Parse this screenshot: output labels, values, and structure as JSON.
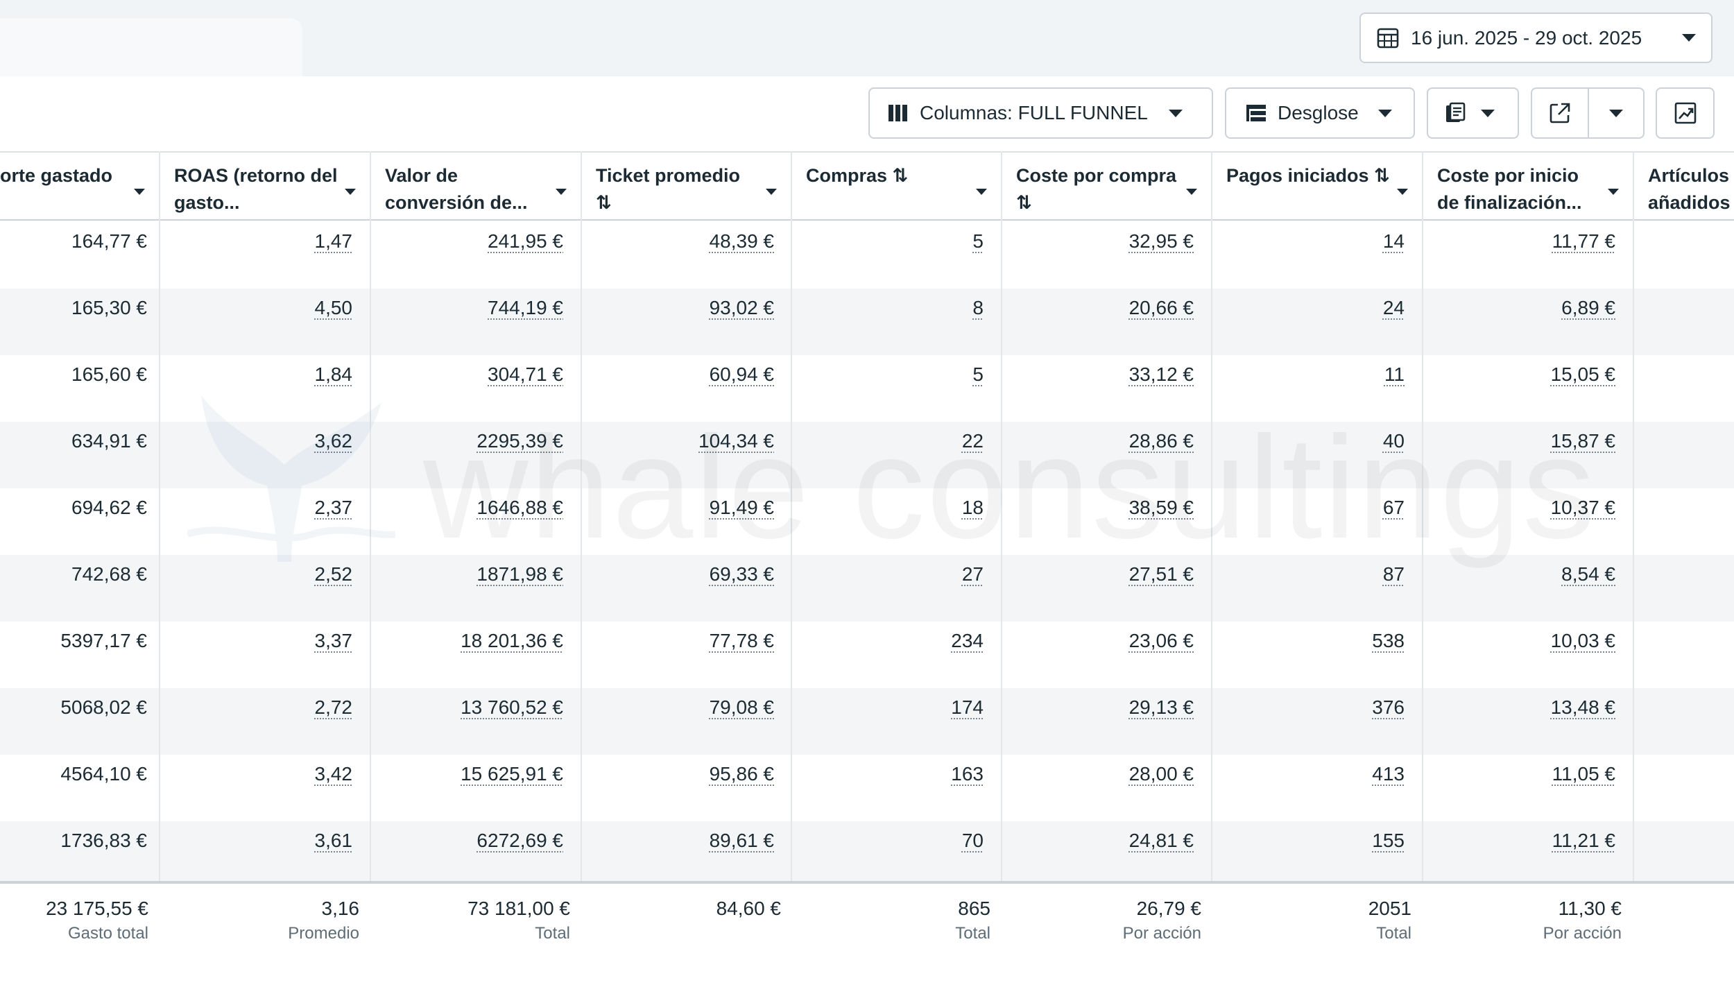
{
  "date_range": {
    "label": "16 jun. 2025 - 29 oct. 2025"
  },
  "toolbar": {
    "columns_label": "Columnas: FULL FUNNEL",
    "breakdown_label": "Desglose"
  },
  "columns": [
    {
      "title": "orte gastado"
    },
    {
      "title": "ROAS (retorno del gasto..."
    },
    {
      "title": "Valor de conversión de..."
    },
    {
      "title": "Ticket promedio ⇅"
    },
    {
      "title": "Compras ⇅"
    },
    {
      "title": "Coste por compra ⇅"
    },
    {
      "title": "Pagos iniciados ⇅"
    },
    {
      "title": "Coste por inicio de finalización..."
    },
    {
      "title": "Artículos añadidos"
    }
  ],
  "rows": [
    [
      "164,77 €",
      "1,47",
      "241,95 €",
      "48,39 €",
      "5",
      "32,95 €",
      "14",
      "11,77 €"
    ],
    [
      "165,30 €",
      "4,50",
      "744,19 €",
      "93,02 €",
      "8",
      "20,66 €",
      "24",
      "6,89 €"
    ],
    [
      "165,60 €",
      "1,84",
      "304,71 €",
      "60,94 €",
      "5",
      "33,12 €",
      "11",
      "15,05 €"
    ],
    [
      "634,91 €",
      "3,62",
      "2295,39 €",
      "104,34 €",
      "22",
      "28,86 €",
      "40",
      "15,87 €"
    ],
    [
      "694,62 €",
      "2,37",
      "1646,88 €",
      "91,49 €",
      "18",
      "38,59 €",
      "67",
      "10,37 €"
    ],
    [
      "742,68 €",
      "2,52",
      "1871,98 €",
      "69,33 €",
      "27",
      "27,51 €",
      "87",
      "8,54 €"
    ],
    [
      "5397,17 €",
      "3,37",
      "18 201,36 €",
      "77,78 €",
      "234",
      "23,06 €",
      "538",
      "10,03 €"
    ],
    [
      "5068,02 €",
      "2,72",
      "13 760,52 €",
      "79,08 €",
      "174",
      "29,13 €",
      "376",
      "13,48 €"
    ],
    [
      "4564,10 €",
      "3,42",
      "15 625,91 €",
      "95,86 €",
      "163",
      "28,00 €",
      "413",
      "11,05 €"
    ],
    [
      "1736,83 €",
      "3,61",
      "6272,69 €",
      "89,61 €",
      "70",
      "24,81 €",
      "155",
      "11,21 €"
    ]
  ],
  "totals": [
    {
      "value": "23 175,55 €",
      "label": "Gasto total"
    },
    {
      "value": "3,16",
      "label": "Promedio"
    },
    {
      "value": "73 181,00 €",
      "label": "Total"
    },
    {
      "value": "84,60 €",
      "label": ""
    },
    {
      "value": "865",
      "label": "Total"
    },
    {
      "value": "26,79 €",
      "label": "Por acción"
    },
    {
      "value": "2051",
      "label": "Total"
    },
    {
      "value": "11,30 €",
      "label": "Por acción"
    }
  ],
  "watermark": {
    "text": "whale consultings"
  },
  "icons": {
    "date": "calendar-icon",
    "columns": "columns-icon",
    "breakdown": "breakdown-icon",
    "reports": "reports-icon",
    "export": "export-icon",
    "chart": "chart-icon"
  }
}
